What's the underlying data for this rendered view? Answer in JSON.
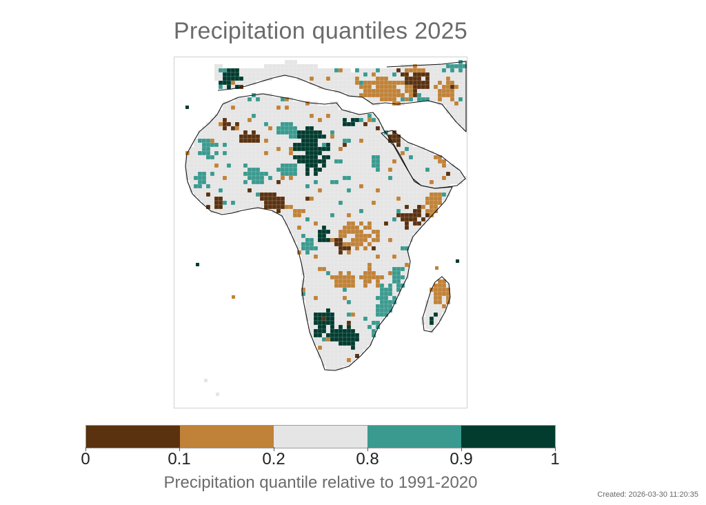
{
  "title": "Precipitation quantiles 2025",
  "colorbar": {
    "label": "Precipitation quantile relative to 1991-2020",
    "ticks": [
      "0",
      "0.1",
      "0.2",
      "0.8",
      "0.9",
      "1"
    ],
    "colors": [
      "#5a3210",
      "#c08238",
      "#e5e5e5",
      "#3b9a8f",
      "#023c2f"
    ],
    "class_names": [
      "very-dry",
      "dry",
      "normal",
      "wet",
      "very-wet"
    ]
  },
  "footer": {
    "created": "Created: 2026-03-30 11:20:35"
  },
  "map": {
    "region": "Africa and the Middle East",
    "colors": {
      "coast": "#111111",
      "frame": "#cfcfcf"
    }
  }
}
